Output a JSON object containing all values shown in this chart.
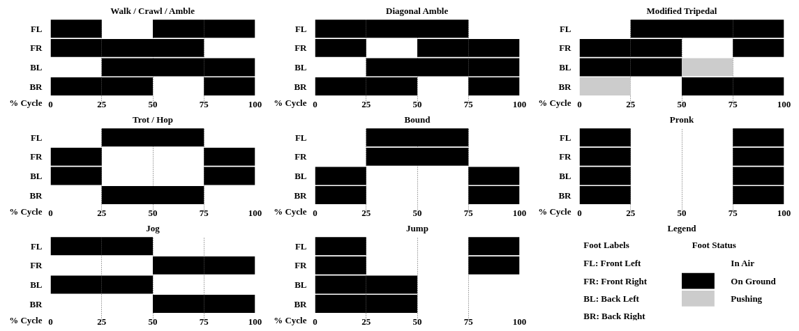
{
  "chart_data": [
    {
      "type": "bar",
      "orientation": "horizontal",
      "title": "Walk / Crawl / Amble",
      "xlabel": "% Cycle",
      "categories": [
        "FL",
        "FR",
        "BL",
        "BR"
      ],
      "xlim": [
        0,
        100
      ],
      "xticks": [
        0,
        25,
        50,
        75,
        100
      ],
      "grid": "x",
      "series": [
        {
          "base": [
            0,
            0,
            null,
            0
          ],
          "values": [
            25,
            25,
            null,
            25
          ],
          "colors": [
            "#000000",
            "#000000",
            null,
            "#000000"
          ]
        },
        {
          "base": [
            null,
            25,
            25,
            25
          ],
          "values": [
            null,
            25,
            25,
            25
          ],
          "colors": [
            null,
            "#000000",
            "#000000",
            "#000000"
          ]
        },
        {
          "base": [
            50,
            50,
            50,
            null
          ],
          "values": [
            25,
            25,
            25,
            null
          ],
          "colors": [
            "#000000",
            "#000000",
            "#000000",
            null
          ]
        },
        {
          "base": [
            75,
            null,
            75,
            75
          ],
          "values": [
            25,
            null,
            25,
            25
          ],
          "colors": [
            "#000000",
            null,
            "#000000",
            "#000000"
          ]
        }
      ]
    },
    {
      "type": "bar",
      "orientation": "horizontal",
      "title": "Diagonal Amble",
      "xlabel": "% Cycle",
      "categories": [
        "FL",
        "FR",
        "BL",
        "BR"
      ],
      "xlim": [
        0,
        100
      ],
      "xticks": [
        0,
        25,
        50,
        75,
        100
      ],
      "grid": "x",
      "series": [
        {
          "base": [
            0,
            0,
            null,
            0
          ],
          "values": [
            25,
            25,
            null,
            25
          ],
          "colors": [
            "#000000",
            "#000000",
            null,
            "#000000"
          ]
        },
        {
          "base": [
            25,
            null,
            25,
            25
          ],
          "values": [
            25,
            null,
            25,
            25
          ],
          "colors": [
            "#000000",
            null,
            "#000000",
            "#000000"
          ]
        },
        {
          "base": [
            50,
            50,
            50,
            null
          ],
          "values": [
            25,
            25,
            25,
            null
          ],
          "colors": [
            "#000000",
            "#000000",
            "#000000",
            null
          ]
        },
        {
          "base": [
            null,
            75,
            75,
            75
          ],
          "values": [
            null,
            25,
            25,
            25
          ],
          "colors": [
            null,
            "#000000",
            "#000000",
            "#000000"
          ]
        }
      ]
    },
    {
      "type": "bar",
      "orientation": "horizontal",
      "title": "Modified Tripedal",
      "xlabel": "% Cycle",
      "categories": [
        "FL",
        "FR",
        "BL",
        "BR"
      ],
      "xlim": [
        0,
        100
      ],
      "xticks": [
        0,
        25,
        50,
        75,
        100
      ],
      "grid": "x",
      "series": [
        {
          "base": [
            null,
            0,
            0,
            0
          ],
          "values": [
            null,
            25,
            25,
            25
          ],
          "colors": [
            null,
            "#000000",
            "#000000",
            "#cccccc"
          ]
        },
        {
          "base": [
            25,
            25,
            25,
            null
          ],
          "values": [
            25,
            25,
            25,
            null
          ],
          "colors": [
            "#000000",
            "#000000",
            "#000000",
            null
          ]
        },
        {
          "base": [
            50,
            null,
            50,
            50
          ],
          "values": [
            25,
            null,
            25,
            25
          ],
          "colors": [
            "#000000",
            null,
            "#cccccc",
            "#000000"
          ]
        },
        {
          "base": [
            75,
            75,
            null,
            75
          ],
          "values": [
            25,
            25,
            null,
            25
          ],
          "colors": [
            "#000000",
            "#000000",
            null,
            "#000000"
          ]
        }
      ]
    },
    {
      "type": "bar",
      "orientation": "horizontal",
      "title": "Trot / Hop",
      "xlabel": "% Cycle",
      "categories": [
        "FL",
        "FR",
        "BL",
        "BR"
      ],
      "xlim": [
        0,
        100
      ],
      "xticks": [
        0,
        25,
        50,
        75,
        100
      ],
      "grid": "x",
      "series": [
        {
          "base": [
            null,
            0,
            0,
            null
          ],
          "values": [
            null,
            25,
            25,
            null
          ],
          "colors": [
            null,
            "#000000",
            "#000000",
            null
          ]
        },
        {
          "base": [
            25,
            null,
            null,
            25
          ],
          "values": [
            25,
            null,
            null,
            25
          ],
          "colors": [
            "#000000",
            null,
            null,
            "#000000"
          ]
        },
        {
          "base": [
            50,
            null,
            null,
            50
          ],
          "values": [
            25,
            null,
            null,
            25
          ],
          "colors": [
            "#000000",
            null,
            null,
            "#000000"
          ]
        },
        {
          "base": [
            null,
            75,
            75,
            null
          ],
          "values": [
            null,
            25,
            25,
            null
          ],
          "colors": [
            null,
            "#000000",
            "#000000",
            null
          ]
        }
      ]
    },
    {
      "type": "bar",
      "orientation": "horizontal",
      "title": "Bound",
      "xlabel": "% Cycle",
      "categories": [
        "FL",
        "FR",
        "BL",
        "BR"
      ],
      "xlim": [
        0,
        100
      ],
      "xticks": [
        0,
        25,
        50,
        75,
        100
      ],
      "grid": "x",
      "series": [
        {
          "base": [
            null,
            null,
            0,
            0
          ],
          "values": [
            null,
            null,
            25,
            25
          ],
          "colors": [
            null,
            null,
            "#000000",
            "#000000"
          ]
        },
        {
          "base": [
            25,
            25,
            null,
            null
          ],
          "values": [
            25,
            25,
            null,
            null
          ],
          "colors": [
            "#000000",
            "#000000",
            null,
            null
          ]
        },
        {
          "base": [
            50,
            50,
            null,
            null
          ],
          "values": [
            25,
            25,
            null,
            null
          ],
          "colors": [
            "#000000",
            "#000000",
            null,
            null
          ]
        },
        {
          "base": [
            null,
            null,
            75,
            75
          ],
          "values": [
            null,
            null,
            25,
            25
          ],
          "colors": [
            null,
            null,
            "#000000",
            "#000000"
          ]
        }
      ]
    },
    {
      "type": "bar",
      "orientation": "horizontal",
      "title": "Pronk",
      "xlabel": "% Cycle",
      "categories": [
        "FL",
        "FR",
        "BL",
        "BR"
      ],
      "xlim": [
        0,
        100
      ],
      "xticks": [
        0,
        25,
        50,
        75,
        100
      ],
      "grid": "x",
      "series": [
        {
          "base": [
            0,
            0,
            0,
            0
          ],
          "values": [
            25,
            25,
            25,
            25
          ],
          "colors": [
            "#000000",
            "#000000",
            "#000000",
            "#000000"
          ]
        },
        {
          "base": [
            75,
            75,
            75,
            75
          ],
          "values": [
            25,
            25,
            25,
            25
          ],
          "colors": [
            "#000000",
            "#000000",
            "#000000",
            "#000000"
          ]
        }
      ]
    },
    {
      "type": "bar",
      "orientation": "horizontal",
      "title": "Jog",
      "xlabel": "% Cycle",
      "categories": [
        "FL",
        "FR",
        "BL",
        "BR"
      ],
      "xlim": [
        0,
        100
      ],
      "xticks": [
        0,
        25,
        50,
        75,
        100
      ],
      "grid": "x",
      "series": [
        {
          "base": [
            0,
            null,
            0,
            null
          ],
          "values": [
            25,
            null,
            25,
            null
          ],
          "colors": [
            "#000000",
            null,
            "#000000",
            null
          ]
        },
        {
          "base": [
            25,
            null,
            25,
            null
          ],
          "values": [
            25,
            null,
            25,
            null
          ],
          "colors": [
            "#000000",
            null,
            "#000000",
            null
          ]
        },
        {
          "base": [
            null,
            50,
            null,
            50
          ],
          "values": [
            null,
            25,
            null,
            25
          ],
          "colors": [
            null,
            "#000000",
            null,
            "#000000"
          ]
        },
        {
          "base": [
            null,
            75,
            null,
            75
          ],
          "values": [
            null,
            25,
            null,
            25
          ],
          "colors": [
            null,
            "#000000",
            null,
            "#000000"
          ]
        }
      ]
    },
    {
      "type": "bar",
      "orientation": "horizontal",
      "title": "Jump",
      "xlabel": "% Cycle",
      "categories": [
        "FL",
        "FR",
        "BL",
        "BR"
      ],
      "xlim": [
        0,
        100
      ],
      "xticks": [
        0,
        25,
        50,
        75,
        100
      ],
      "grid": "x",
      "series": [
        {
          "base": [
            0,
            0,
            0,
            0
          ],
          "values": [
            25,
            25,
            25,
            25
          ],
          "colors": [
            "#000000",
            "#000000",
            "#000000",
            "#000000"
          ]
        },
        {
          "base": [
            null,
            null,
            25,
            25
          ],
          "values": [
            null,
            null,
            25,
            25
          ],
          "colors": [
            null,
            null,
            "#000000",
            "#000000"
          ]
        },
        {
          "base": [
            75,
            75,
            null,
            null
          ],
          "values": [
            25,
            25,
            null,
            null
          ],
          "colors": [
            "#000000",
            "#000000",
            null,
            null
          ]
        }
      ]
    },
    {
      "type": "other",
      "title": "Legend",
      "annotations": [
        "Foot Labels",
        "Foot Status",
        "FL: Front Left",
        "FR: Front Right",
        "BL: Back Left",
        "BR: Back Right"
      ],
      "categories": [
        "In Air",
        "On Ground",
        "Pushing"
      ],
      "colors": [
        "#ffffff",
        "#000000",
        "#cccccc"
      ]
    }
  ]
}
